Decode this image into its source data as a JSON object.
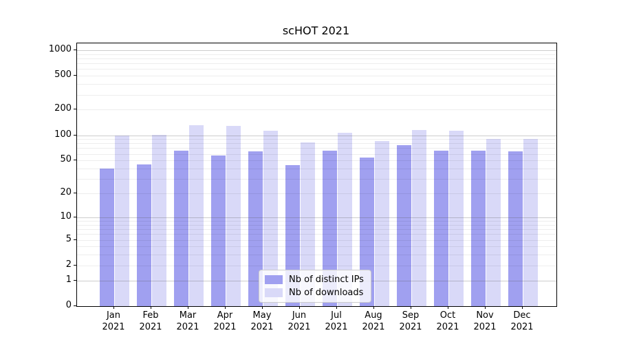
{
  "chart_data": {
    "type": "bar",
    "title": "scHOT 2021",
    "categories": [
      "Jan 2021",
      "Feb 2021",
      "Mar 2021",
      "Apr 2021",
      "May 2021",
      "Jun 2021",
      "Jul 2021",
      "Aug 2021",
      "Sep 2021",
      "Oct 2021",
      "Nov 2021",
      "Dec 2021"
    ],
    "series": [
      {
        "name": "Nb of distinct IPs",
        "color": "#a0a0f0",
        "values": [
          40,
          45,
          66,
          57,
          64,
          44,
          65,
          54,
          76,
          66,
          66,
          64
        ]
      },
      {
        "name": "Nb of downloads",
        "color": "#d9d9f8",
        "values": [
          100,
          101,
          132,
          128,
          114,
          82,
          106,
          85,
          116,
          112,
          90,
          90
        ]
      }
    ],
    "xlabel": "",
    "ylabel": "",
    "yscale": "log1p",
    "yticks": [
      1000,
      500,
      200,
      100,
      50,
      20,
      10,
      5,
      2,
      1,
      0
    ],
    "ylim": [
      0,
      1200
    ],
    "grid": "horizontal, major and minor",
    "legend_position": "lower center"
  },
  "colors": {
    "bar_ips": "#a0a0f0",
    "bar_downloads": "#d9d9f8",
    "major_grid": "#b3b3b3",
    "minor_grid": "#ececec",
    "axis": "#000000",
    "legend_border": "#cccccc",
    "background": "#ffffff"
  }
}
